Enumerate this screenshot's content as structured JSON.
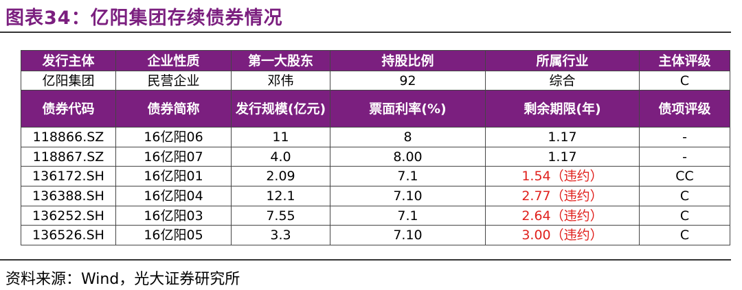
{
  "title": "图表34：亿阳集团存续债券情况",
  "table": {
    "header1": [
      "发行主体",
      "企业性质",
      "第一大股东",
      "持股比例",
      "所属行业",
      "主体评级"
    ],
    "row1": [
      "亿阳集团",
      "民营企业",
      "邓伟",
      "92",
      "综合",
      "C"
    ],
    "header2": [
      "债券代码",
      "债券简称",
      "发行规模(亿元)",
      "票面利率(%)",
      "剩余期限(年)",
      "债项评级"
    ],
    "rows": [
      [
        "118866.SZ",
        "16亿阳06",
        "11",
        "8",
        "1.17",
        "-"
      ],
      [
        "118867.SZ",
        "16亿阳07",
        "4.0",
        "8.00",
        "1.17",
        "-"
      ],
      [
        "136172.SH",
        "16亿阳01",
        "2.09",
        "7.1",
        "1.54（违约）",
        "CC"
      ],
      [
        "136388.SH",
        "16亿阳04",
        "12.1",
        "7.10",
        "2.77（违约）",
        "C"
      ],
      [
        "136252.SH",
        "16亿阳03",
        "7.55",
        "7.1",
        "2.64（违约）",
        "C"
      ],
      [
        "136526.SH",
        "16亿阳05",
        "3.3",
        "7.10",
        "3.00（违约）",
        "C"
      ]
    ]
  },
  "source": "资料来源：Wind，光大证券研究所"
}
